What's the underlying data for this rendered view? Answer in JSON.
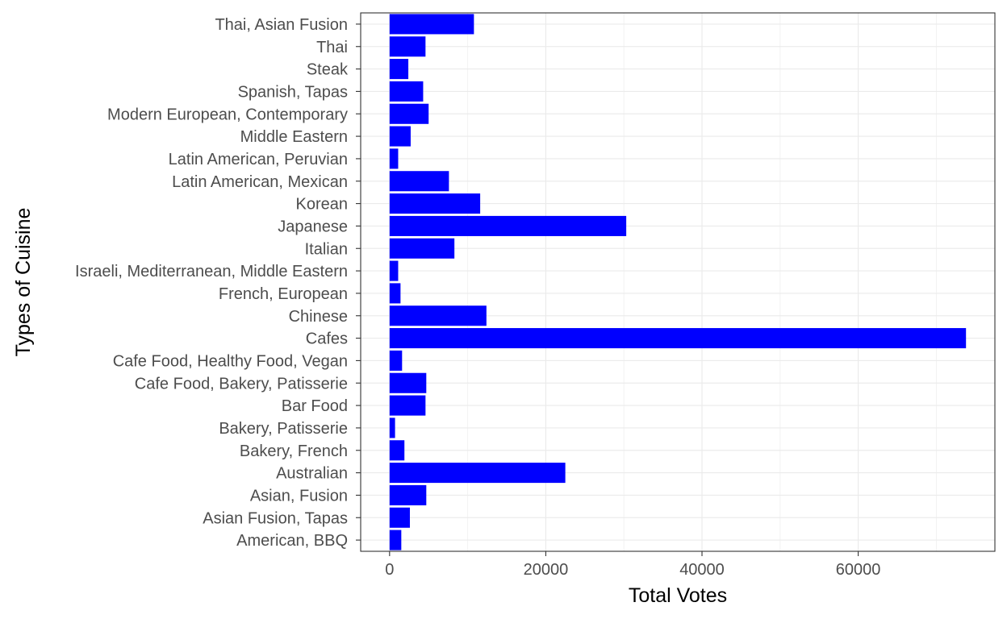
{
  "chart_data": {
    "type": "bar",
    "orientation": "horizontal",
    "title": "",
    "xlabel": "Total Votes",
    "ylabel": "Types of Cuisine",
    "categories": [
      "American, BBQ",
      "Asian Fusion, Tapas",
      "Asian, Fusion",
      "Australian",
      "Bakery, French",
      "Bakery, Patisserie",
      "Bar Food",
      "Cafe Food, Bakery, Patisserie",
      "Cafe Food, Healthy Food, Vegan",
      "Cafes",
      "Chinese",
      "French, European",
      "Israeli, Mediterranean, Middle Eastern",
      "Italian",
      "Japanese",
      "Korean",
      "Latin American, Mexican",
      "Latin American, Peruvian",
      "Middle Eastern",
      "Modern European, Contemporary",
      "Spanish, Tapas",
      "Steak",
      "Thai",
      "Thai, Asian Fusion"
    ],
    "values": [
      1500,
      2600,
      4700,
      22500,
      1900,
      700,
      4600,
      4700,
      1600,
      73800,
      12400,
      1400,
      1100,
      8300,
      30300,
      11600,
      7600,
      1100,
      2700,
      5000,
      4300,
      2400,
      4600,
      10800
    ],
    "xlim": [
      -3700,
      77500
    ],
    "xticks": [
      0,
      20000,
      40000,
      60000
    ],
    "xtick_labels": [
      "0",
      "20000",
      "40000",
      "60000"
    ],
    "grid": true,
    "bar_color": "#0000ff",
    "theme": "bw"
  }
}
